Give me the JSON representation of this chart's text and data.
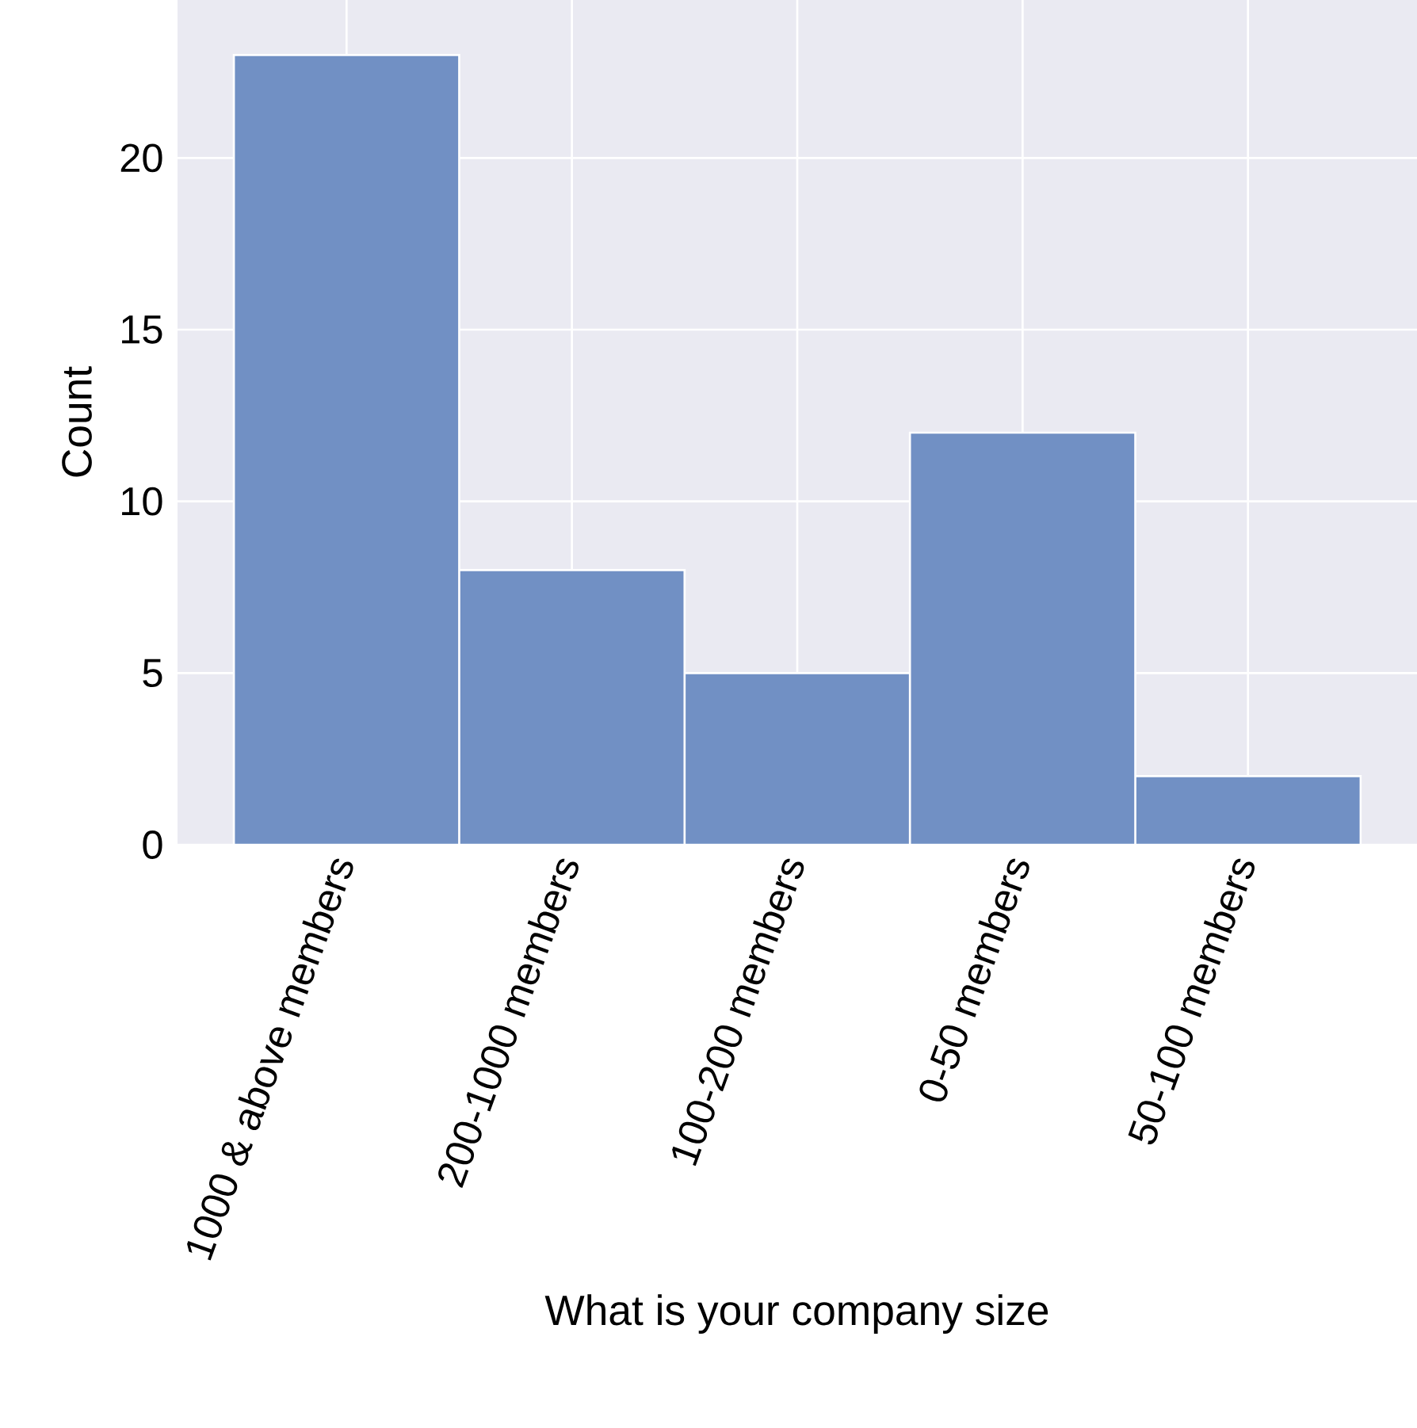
{
  "chart_data": {
    "type": "bar",
    "xlabel": "What is your company size",
    "ylabel": "Count",
    "categories": [
      "1000 & above members",
      "200-1000  members",
      "100-200 members",
      "0-50 members",
      "50-100 members"
    ],
    "values": [
      23,
      8,
      5,
      12,
      2
    ],
    "color": "#7190c4",
    "ylim": [
      0,
      24.6
    ],
    "yticks": [
      0,
      5,
      10,
      15,
      20
    ],
    "grid": true
  }
}
